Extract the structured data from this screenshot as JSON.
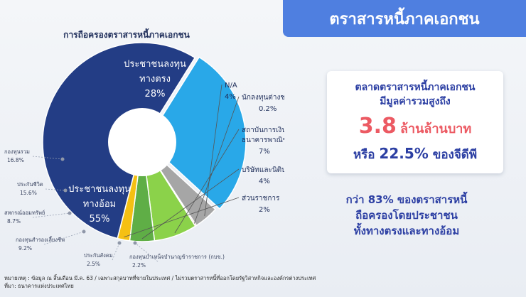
{
  "header": {
    "title": "ตราสารหนี้ภาคเอกชน"
  },
  "info_card": {
    "line1": "ตลาดตราสารหนี้ภาคเอกชน",
    "line2": "มีมูลค่ารวมสูงถึง",
    "value": "3.8",
    "value_unit": "ล้านล้านบาท",
    "line4_prefix": "หรือ",
    "line4_pct": "22.5%",
    "line4_suffix": "ของจีดีพี"
  },
  "summary": {
    "line1": "กว่า 83% ของตราสารหนี้",
    "line2": "ถือครองโดยประชาชน",
    "line3": "ทั้งทางตรงและทางอ้อม"
  },
  "footnote": {
    "line1": "หมายเหตุ : ข้อมูล ณ สิ้นเดือน มี.ค. 63 / เฉพาะสกุลบาทที่ขายในประเทศ / ไม่รวมตราสารหนี้ที่ออกโดยรัฐวิสาหกิจและองค์กรต่างประเทศ",
    "line2": "ที่มา: ธนาคารแห่งประเทศไทย"
  },
  "chart_data": {
    "type": "pie",
    "title": "การถือครองตราสารหนี้ภาคเอกชน",
    "slices": [
      {
        "label": "ประชาชนลงทุน ทางตรง",
        "value": 28,
        "value_label": "28%",
        "color": "#29a8e8"
      },
      {
        "label": "N/A",
        "value": 4,
        "value_label": "4%",
        "color": "#a6a6a6"
      },
      {
        "label": "นักลงทุนต่างชาติ",
        "value": 0.2,
        "value_label": "0.2%",
        "color": "#e8474c"
      },
      {
        "label": "สถาบันการเงิน/ ธนาคารพาณิชย์",
        "value": 7,
        "value_label": "7%",
        "color": "#8bd24a"
      },
      {
        "label": "บริษัทและนิติบุคคล",
        "value": 4,
        "value_label": "4%",
        "color": "#5fae46"
      },
      {
        "label": "ส่วนราชการ",
        "value": 2,
        "value_label": "2%",
        "color": "#f5c013"
      },
      {
        "label": "ประชาชนลงทุน ทางอ้อม",
        "value": 55,
        "value_label": "55%",
        "color": "#233d85"
      }
    ],
    "indirect_breakdown": [
      {
        "label": "กองทุนรวม",
        "value": 16.8,
        "value_label": "16.8%"
      },
      {
        "label": "ประกันชีวิต",
        "value": 15.6,
        "value_label": "15.6%"
      },
      {
        "label": "สหกรณ์ออมทรัพย์",
        "value": 8.7,
        "value_label": "8.7%"
      },
      {
        "label": "กองทุนสำรองเลี้ยงชีพ",
        "value": 9.2,
        "value_label": "9.2%"
      },
      {
        "label": "ประกันสังคม",
        "value": 2.5,
        "value_label": "2.5%"
      },
      {
        "label": "กองทุนบำเหน็จบำนาญข้าราชการ (กบข.)",
        "value": 2.2,
        "value_label": "2.2%"
      }
    ]
  }
}
